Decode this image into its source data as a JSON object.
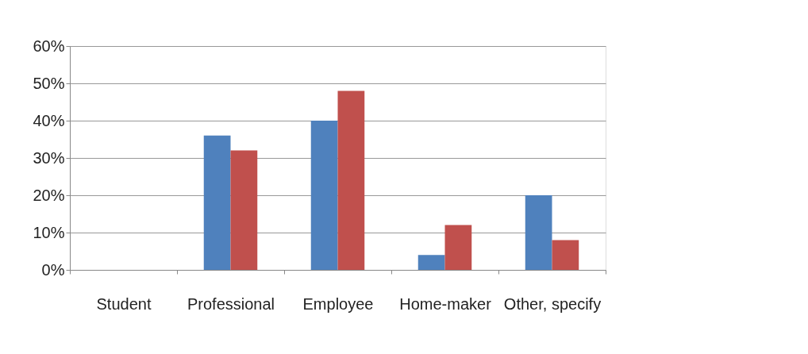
{
  "chart_data": {
    "type": "bar",
    "categories": [
      "Student",
      "Professional",
      "Employee",
      "Home-maker",
      "Other, specify"
    ],
    "series": [
      {
        "color": "#4f81bd",
        "values": [
          0,
          36,
          40,
          4,
          20
        ]
      },
      {
        "color": "#c0504d",
        "values": [
          0,
          32,
          48,
          12,
          8
        ]
      }
    ],
    "ylim": [
      0,
      60
    ],
    "yticks": [
      {
        "value": 0,
        "label": "0%"
      },
      {
        "value": 10,
        "label": "10%"
      },
      {
        "value": 20,
        "label": "20%"
      },
      {
        "value": 30,
        "label": "30%"
      },
      {
        "value": 40,
        "label": "40%"
      },
      {
        "value": 50,
        "label": "50%"
      },
      {
        "value": 60,
        "label": "60%"
      }
    ],
    "grid": "y"
  }
}
